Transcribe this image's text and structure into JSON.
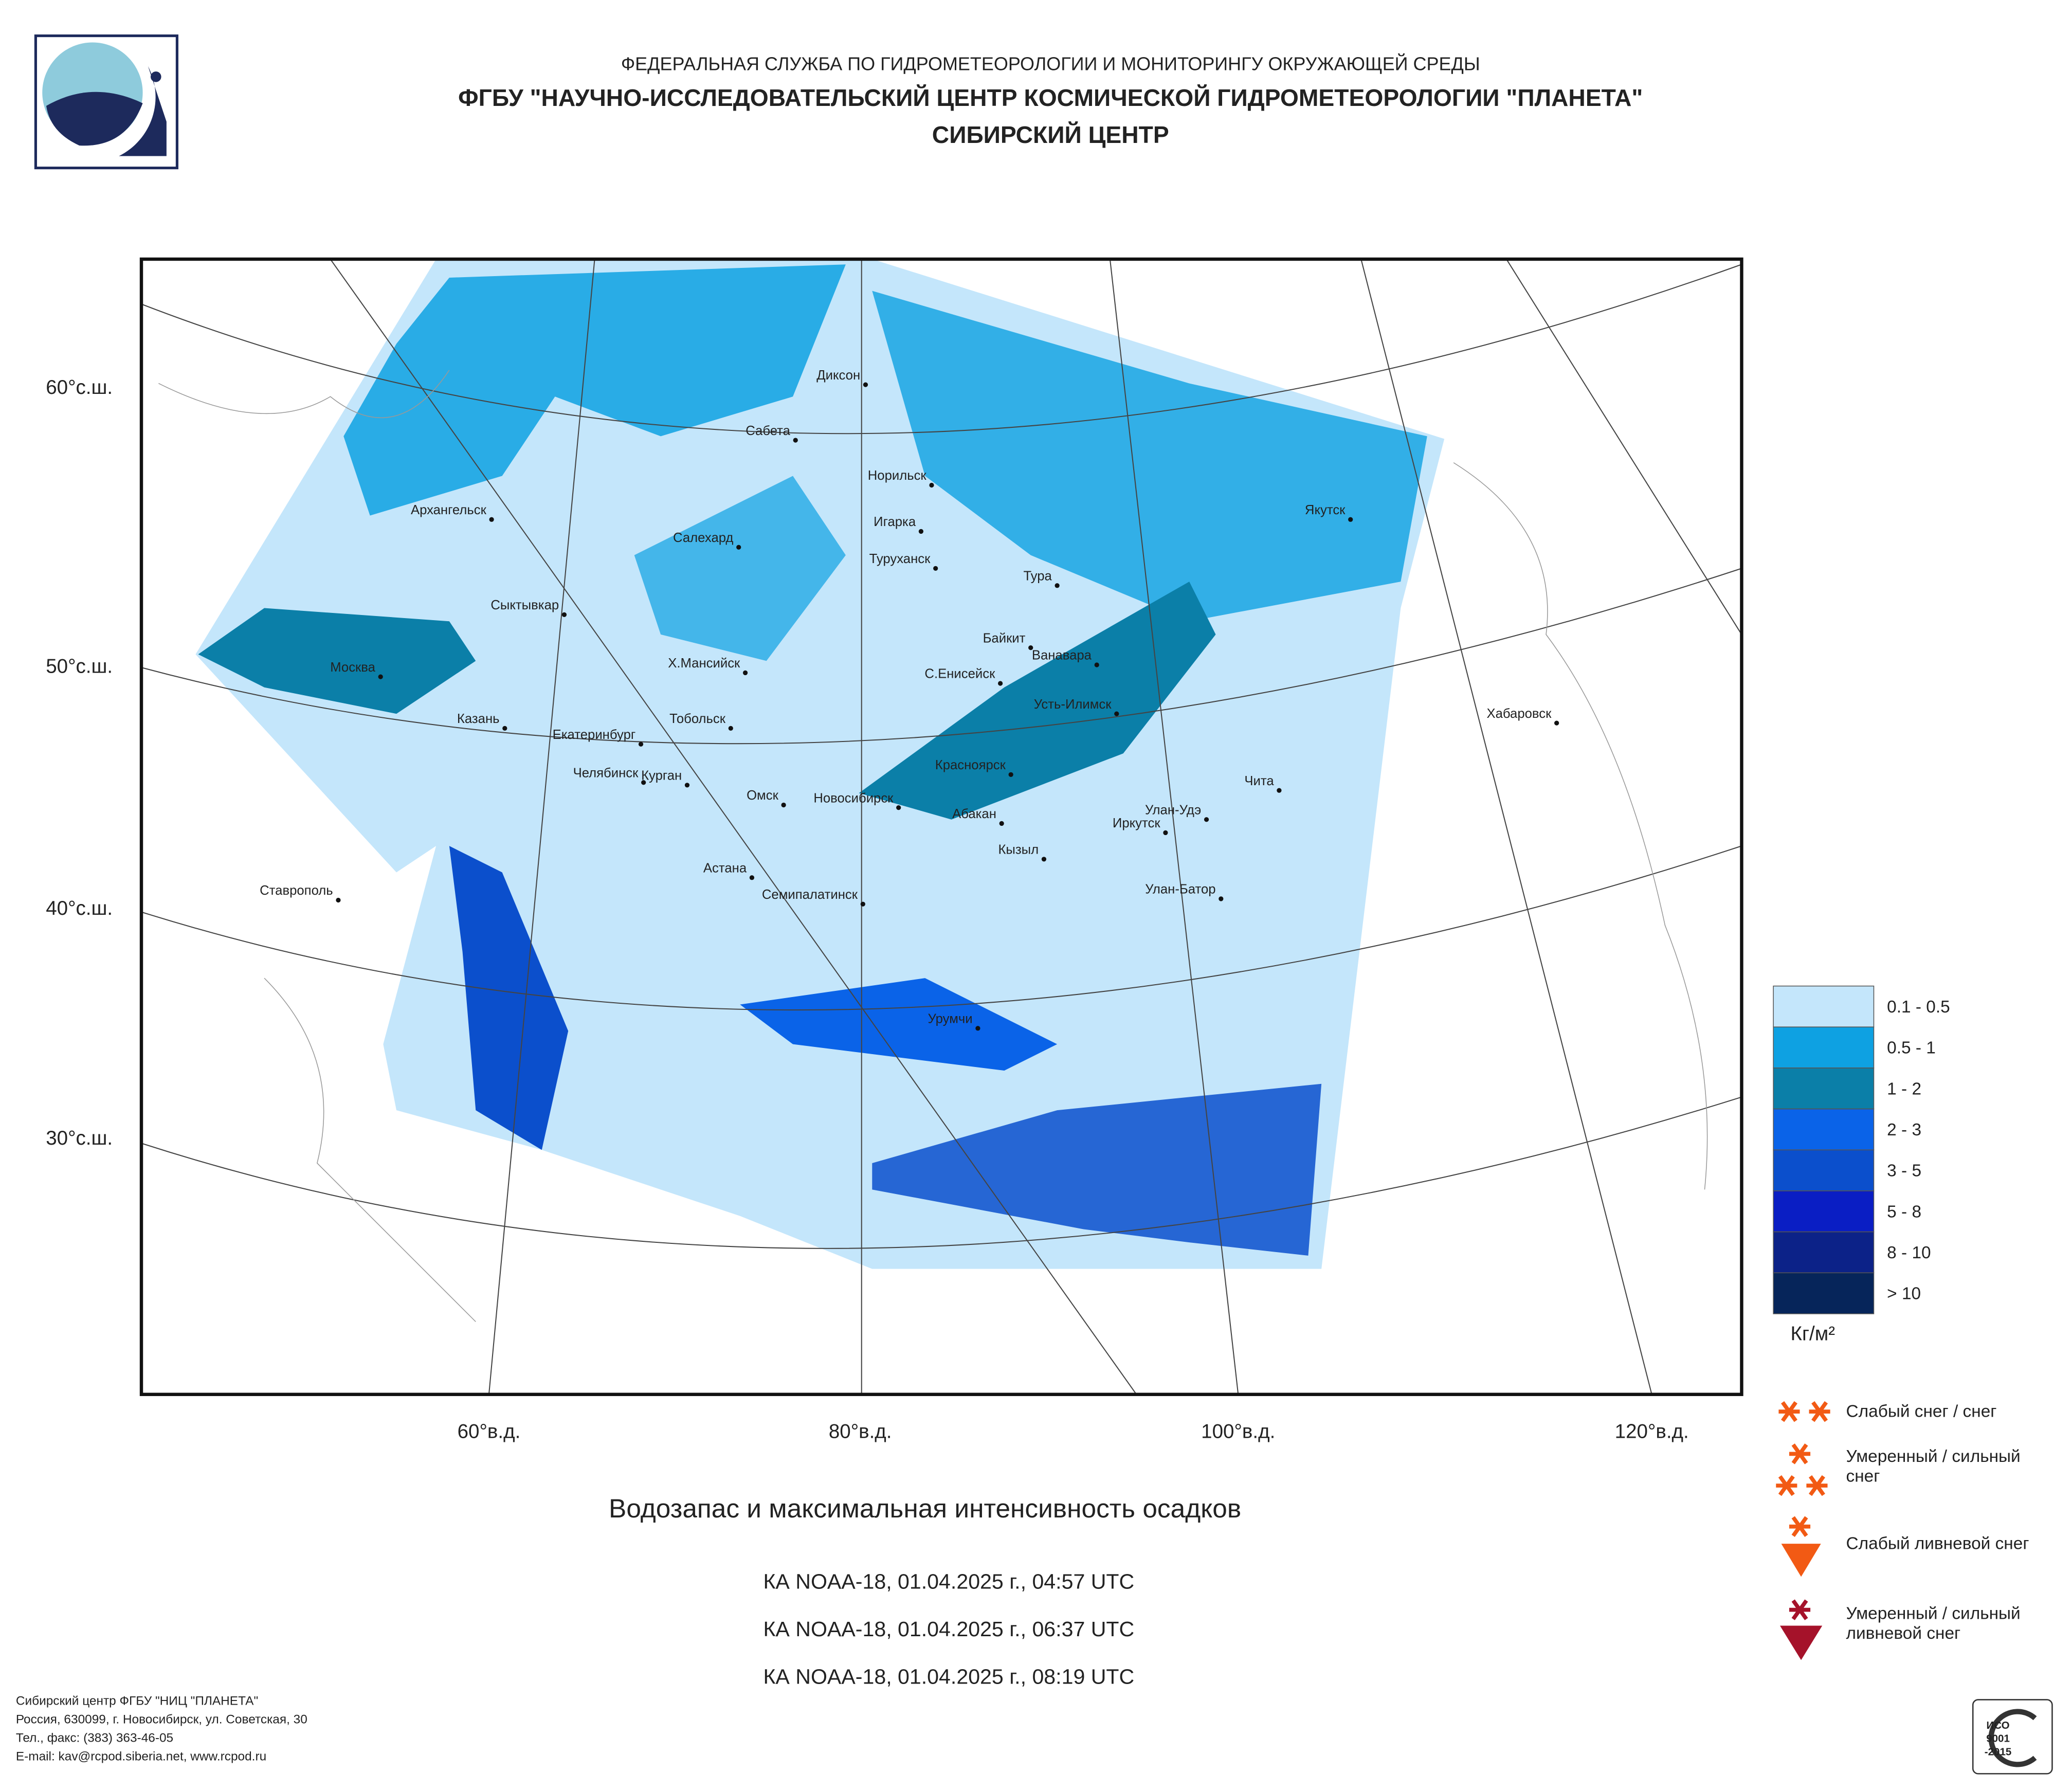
{
  "header": {
    "line1": "ФЕДЕРАЛЬНАЯ СЛУЖБА ПО ГИДРОМЕТЕОРОЛОГИИ И МОНИТОРИНГУ ОКРУЖАЮЩЕЙ СРЕДЫ",
    "line2": "ФГБУ \"НАУЧНО-ИССЛЕДОВАТЕЛЬСКИЙ ЦЕНТР КОСМИЧЕСКОЙ ГИДРОМЕТЕОРОЛОГИИ \"ПЛАНЕТА\"",
    "line3": "СИБИРСКИЙ ЦЕНТР"
  },
  "map": {
    "lat_labels": [
      "60°с.ш.",
      "50°с.ш.",
      "40°с.ш.",
      "30°с.ш."
    ],
    "lon_labels": [
      "60°в.д.",
      "80°в.д.",
      "100°в.д.",
      "120°в.д."
    ],
    "cities": [
      "Диксон",
      "Сабета",
      "Норильск",
      "Архангельск",
      "Салехард",
      "Игарка",
      "Туруханск",
      "Тура",
      "Якутск",
      "Сыктывкар",
      "Байкит",
      "Ванавара",
      "Х.Мансийск",
      "Москва",
      "С.Енисейск",
      "Усть-Илимск",
      "Хабаровск",
      "Казань",
      "Тобольск",
      "Екатеринбург",
      "Челябинск",
      "Курган",
      "Красноярск",
      "Омск",
      "Новосибирск",
      "Чита",
      "Абакан",
      "Улан-Удэ",
      "Иркутск",
      "Кызыл",
      "Астана",
      "Ставрополь",
      "Семипалатинск",
      "Улан-Батор",
      "Урумчи"
    ]
  },
  "legend": {
    "classes": [
      {
        "label": "0.1 - 0.5",
        "color": "#c4e6fb"
      },
      {
        "label": "0.5 - 1",
        "color": "#0ea1e2"
      },
      {
        "label": "1 - 2",
        "color": "#0b7fa8"
      },
      {
        "label": "2 - 3",
        "color": "#0a63e8"
      },
      {
        "label": "3 - 5",
        "color": "#0b4fcc"
      },
      {
        "label": "5 - 8",
        "color": "#0a1ec4"
      },
      {
        "label": "8 - 10",
        "color": "#0c2288"
      },
      {
        "label": "> 10",
        "color": "#06255a"
      }
    ],
    "unit": "Кг/м²",
    "symbols": [
      [
        "Слабый снег / снег"
      ],
      [
        "Умеренный / сильный",
        "снег"
      ],
      [
        "Слабый ливневой снег"
      ],
      [
        "Умеренный / сильный",
        "ливневой снег"
      ]
    ]
  },
  "caption": {
    "title": "Водозапас и максимальная интенсивность осадков",
    "passes": [
      "КА NOAA-18, 01.04.2025 г., 04:57 UTC",
      "КА NOAA-18, 01.04.2025 г., 06:37 UTC",
      "КА NOAA-18, 01.04.2025 г., 08:19 UTC"
    ]
  },
  "footer": {
    "lines": [
      "Сибирский центр ФГБУ \"НИЦ \"ПЛАНЕТА\"",
      "Россия, 630099, г. Новосибирск, ул. Советская, 30",
      "Тел., факс: (383) 363-46-05",
      "E-mail: kav@rcpod.siberia.net, www.rcpod.ru"
    ],
    "cert": [
      "ИСО",
      "9001",
      "-2015"
    ]
  }
}
